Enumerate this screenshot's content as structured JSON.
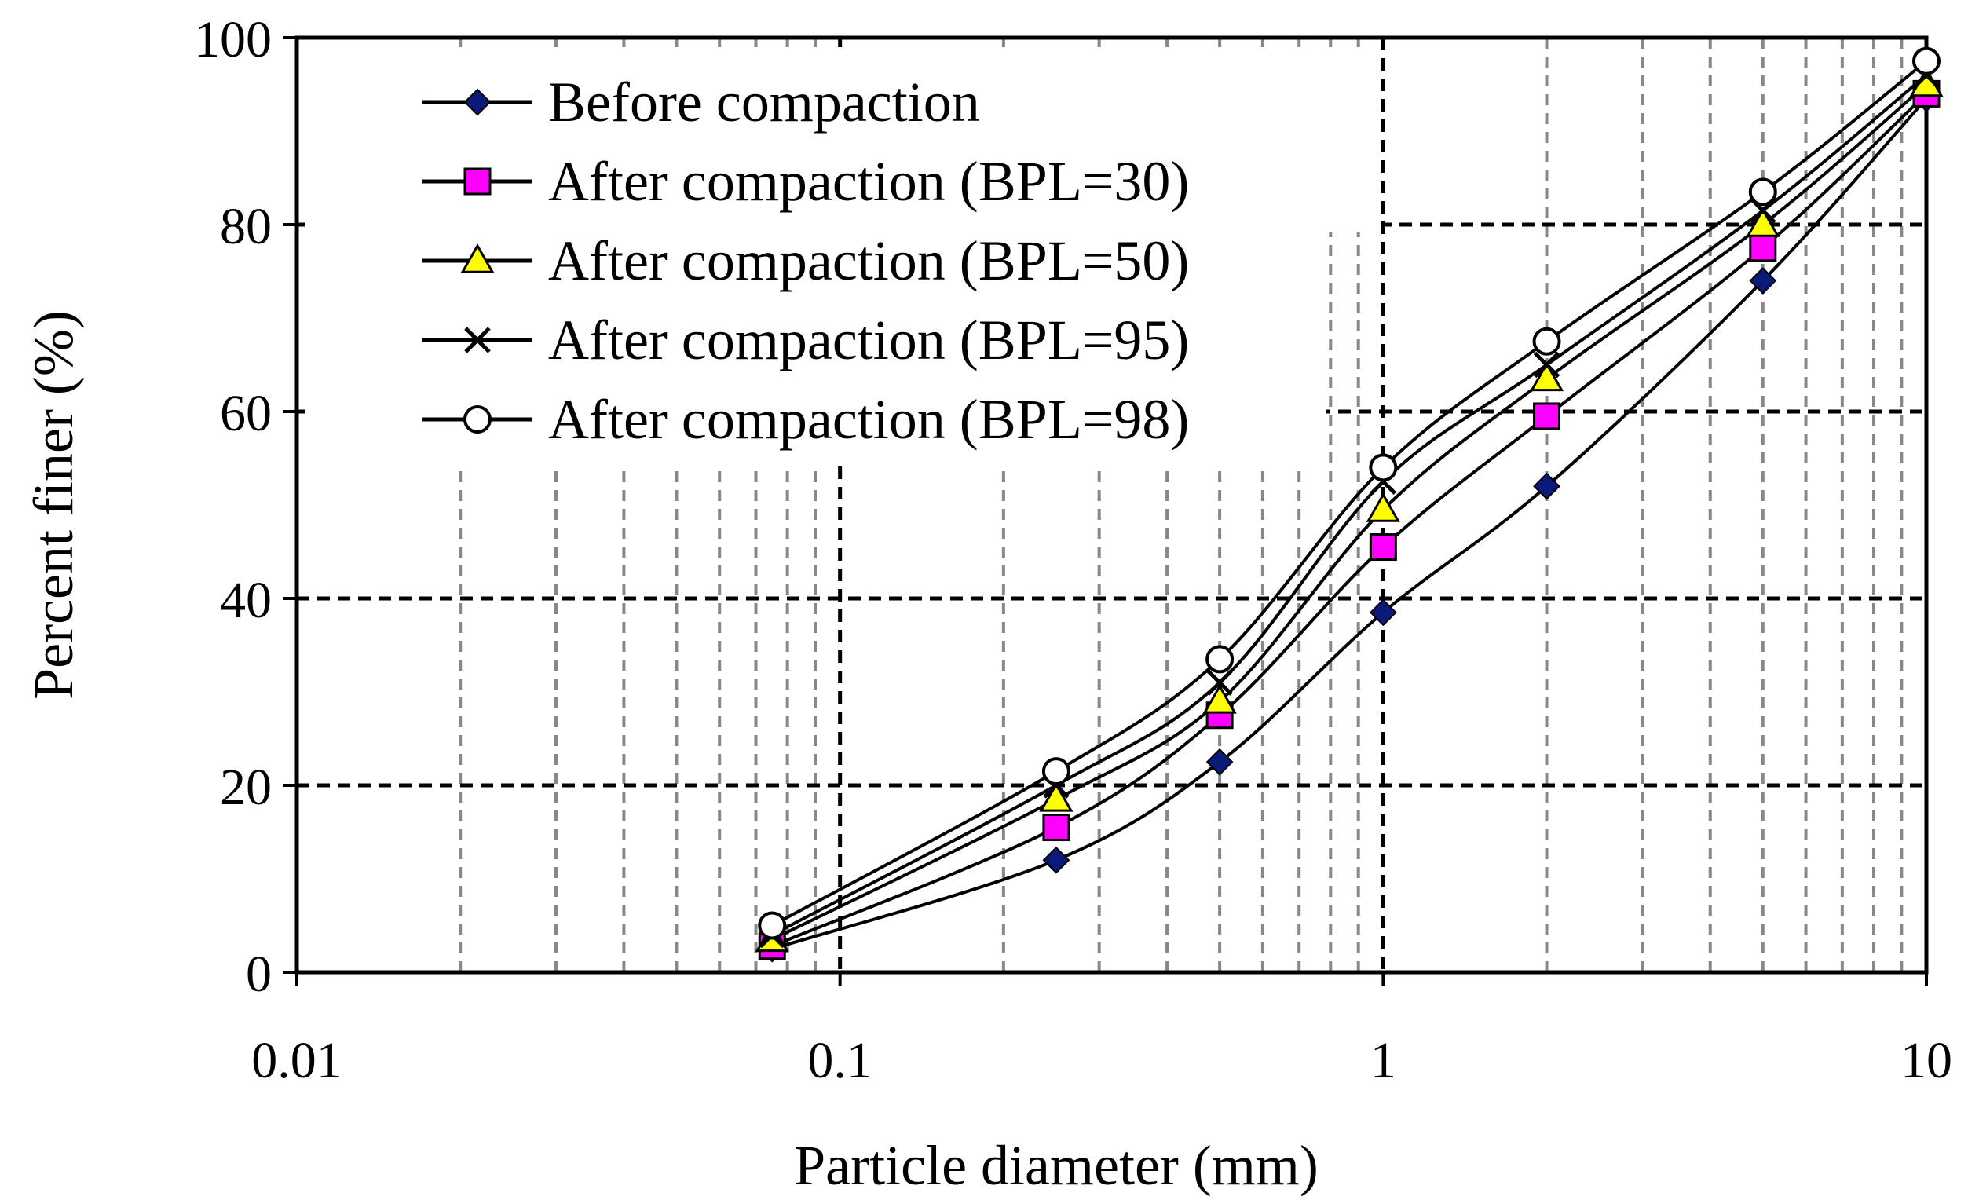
{
  "chart_data": {
    "type": "line",
    "title": "",
    "xlabel": "Particle diameter (mm)",
    "ylabel": "Percent finer  (%)",
    "xscale": "log",
    "xlim": [
      0.01,
      10
    ],
    "ylim": [
      0,
      100
    ],
    "x_ticks": [
      0.01,
      0.1,
      1,
      10
    ],
    "x_tick_labels": [
      "0.01",
      "0.1",
      "1",
      "10"
    ],
    "y_ticks": [
      0,
      20,
      40,
      60,
      80,
      100
    ],
    "y_tick_labels": [
      "0",
      "20",
      "40",
      "60",
      "80",
      "100"
    ],
    "grid": true,
    "legend_position": "top-left",
    "x": [
      0.075,
      0.25,
      0.5,
      1,
      2,
      5,
      10
    ],
    "series": [
      {
        "name": "Before compaction",
        "marker": "diamond",
        "values": [
          2.5,
          12,
          22.5,
          38.5,
          52,
          74,
          93.5
        ]
      },
      {
        "name": "After compaction (BPL=30)",
        "marker": "square",
        "values": [
          2.8,
          15.5,
          27.5,
          45.5,
          59.5,
          77.5,
          94
        ]
      },
      {
        "name": "After compaction (BPL=50)",
        "marker": "triangle",
        "values": [
          3.5,
          18.5,
          29,
          49.5,
          63.5,
          80,
          95
        ]
      },
      {
        "name": "After compaction (BPL=95)",
        "marker": "x",
        "values": [
          4,
          20,
          31,
          52.5,
          65,
          81.5,
          96
        ]
      },
      {
        "name": "After compaction (BPL=98)",
        "marker": "circle",
        "values": [
          5,
          21.5,
          33.5,
          54,
          67.5,
          83.5,
          97.5
        ]
      }
    ],
    "colors": {
      "line": "#000000",
      "diamond_fill": "#0b1a7a",
      "square_fill": "#ff00ff",
      "triangle_fill": "#ffff00",
      "circle_fill": "#ffffff",
      "major_grid": "#000000",
      "minor_grid": "#888888"
    }
  }
}
